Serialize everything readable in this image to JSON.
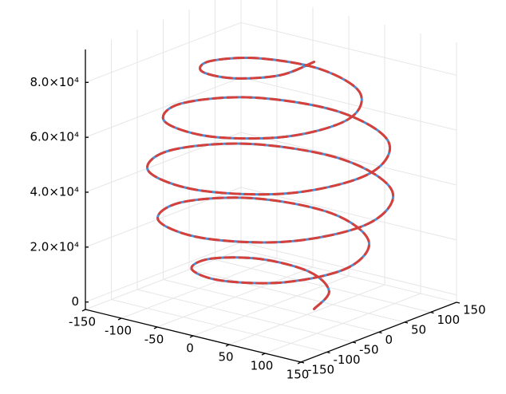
{
  "chart_data": {
    "type": "line3d",
    "x": [
      60,
      47,
      0,
      -56,
      -85,
      -64,
      0,
      72,
      107,
      79,
      0,
      -86,
      -125,
      -91,
      0,
      95,
      136,
      98,
      0,
      -99,
      -140,
      -99,
      0,
      98,
      136,
      95,
      0,
      -91,
      -125,
      -86,
      0,
      79,
      107,
      72,
      0,
      -64,
      -85,
      -56,
      0,
      47,
      60
    ],
    "y": [
      0,
      47,
      73,
      56,
      0,
      -64,
      -96,
      -72,
      0,
      79,
      117,
      86,
      0,
      -91,
      -131,
      -95,
      0,
      98,
      139,
      99,
      0,
      -99,
      -139,
      -98,
      0,
      95,
      131,
      91,
      0,
      -86,
      -117,
      -79,
      0,
      72,
      96,
      64,
      0,
      -56,
      -73,
      -47,
      0
    ],
    "z": [
      0,
      2250,
      4500,
      6750,
      9000,
      11250,
      13500,
      15750,
      18000,
      20250,
      22500,
      24750,
      27000,
      29250,
      31500,
      33750,
      36000,
      38250,
      40500,
      42750,
      45000,
      47250,
      49500,
      51750,
      54000,
      56250,
      58500,
      60750,
      63000,
      65250,
      67500,
      69750,
      72000,
      74250,
      76500,
      78750,
      81000,
      83250,
      85500,
      87750,
      90000
    ],
    "series": [
      {
        "color": "#4a90d9",
        "linestyle": "solid"
      },
      {
        "color": "#d6403a",
        "linestyle": "dash"
      }
    ],
    "xlim": [
      -150,
      150
    ],
    "xticks": [
      -150,
      -100,
      -50,
      0,
      50,
      100,
      150
    ],
    "ylim": [
      -150,
      150
    ],
    "yticks": [
      -150,
      -100,
      -50,
      0,
      50,
      100,
      150
    ],
    "zlim": [
      -2700,
      92000
    ],
    "zticks": [
      0,
      {
        "value": 20000,
        "label": "2.0×10⁴"
      },
      {
        "value": 40000,
        "label": "4.0×10⁴"
      },
      {
        "value": 60000,
        "label": "6.0×10⁴"
      },
      {
        "value": 80000,
        "label": "8.0×10⁴"
      }
    ],
    "grid": true
  }
}
